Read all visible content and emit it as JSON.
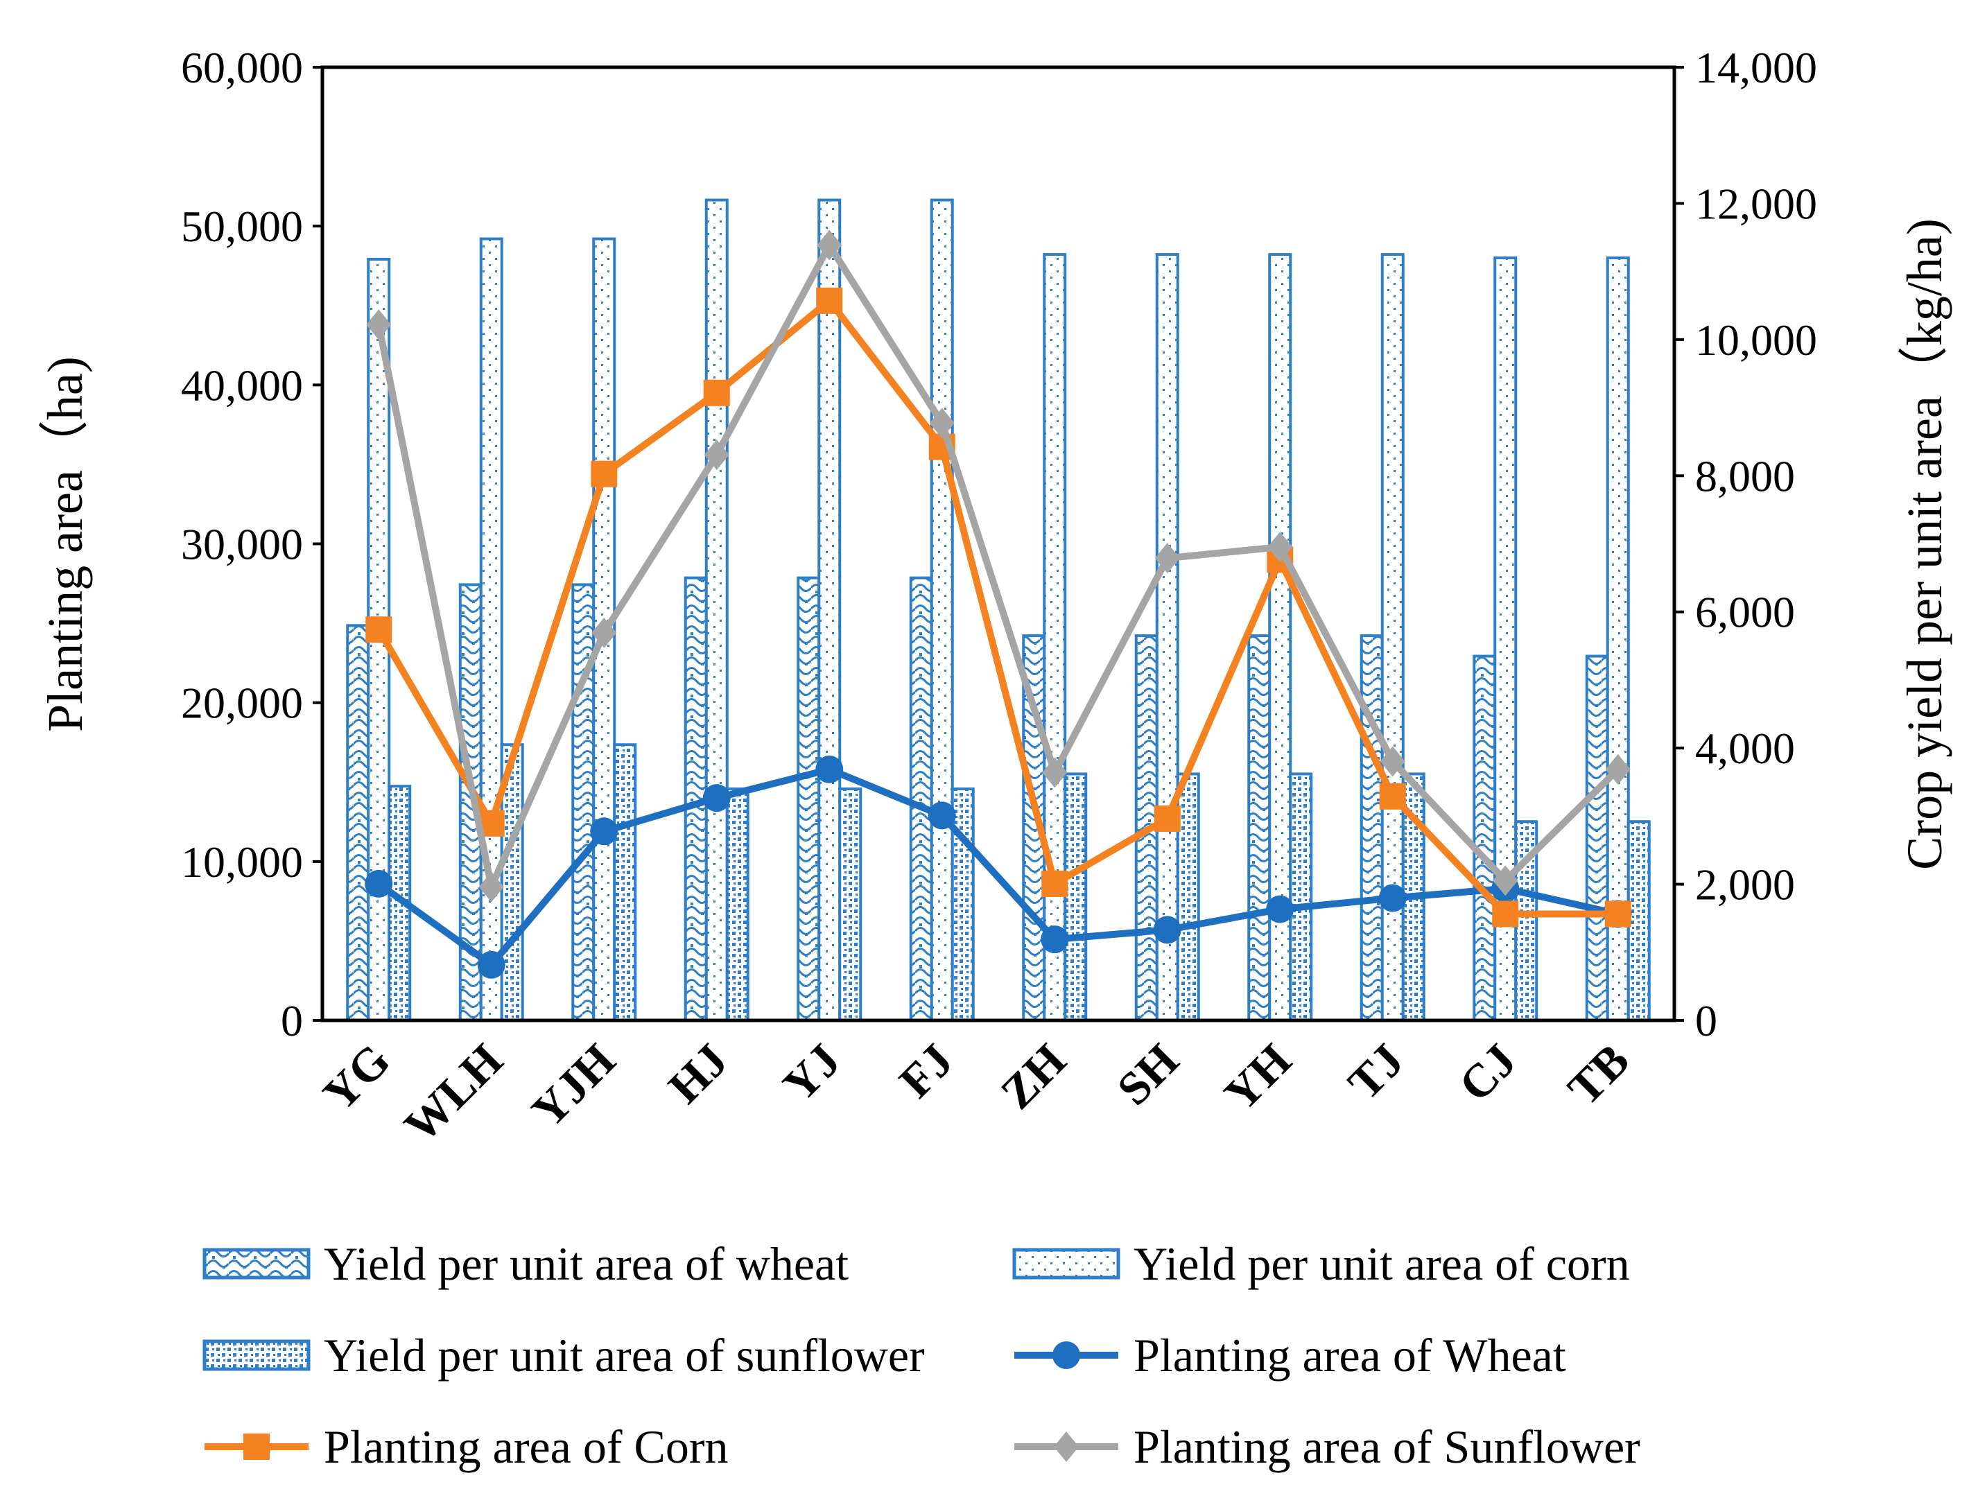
{
  "colors": {
    "bar_blue": "#2f7fc8",
    "wheat_line": "#1f6fc0",
    "corn_line": "#f58220",
    "sunflower_line": "#a5a5a5",
    "axis": "#000000"
  },
  "chart_data": {
    "type": "bar+line",
    "categories": [
      "YG",
      "WLH",
      "YJH",
      "HJ",
      "YJ",
      "FJ",
      "ZH",
      "SH",
      "YH",
      "TJ",
      "CJ",
      "TB"
    ],
    "left_axis": {
      "title": "Planting area（ha)",
      "range": [
        0,
        60000
      ],
      "ticks": [
        0,
        10000,
        20000,
        30000,
        40000,
        50000,
        60000
      ],
      "tick_labels": [
        "0",
        "10,000",
        "20,000",
        "30,000",
        "40,000",
        "50,000",
        "60,000"
      ]
    },
    "right_axis": {
      "title": "Crop yield per unit area（kg/ha)",
      "range": [
        0,
        14000
      ],
      "ticks": [
        0,
        2000,
        4000,
        6000,
        8000,
        10000,
        12000,
        14000
      ],
      "tick_labels": [
        "0",
        "2,000",
        "4,000",
        "6,000",
        "8,000",
        "10,000",
        "12,000",
        "14,000"
      ]
    },
    "bar_series": [
      {
        "name": "Yield per unit area of wheat",
        "axis": "right",
        "pattern": "wheat",
        "values": [
          5800,
          6400,
          6400,
          6500,
          6500,
          6500,
          5650,
          5650,
          5650,
          5650,
          5350,
          5350
        ]
      },
      {
        "name": "Yield per unit area of corn",
        "axis": "right",
        "pattern": "corn",
        "values": [
          11180,
          11480,
          11480,
          12050,
          12050,
          12050,
          11250,
          11250,
          11250,
          11250,
          11200,
          11200
        ]
      },
      {
        "name": "Yield per unit area of sunflower",
        "axis": "right",
        "pattern": "sunflower",
        "values": [
          3440,
          4050,
          4050,
          3400,
          3400,
          3400,
          3620,
          3620,
          3620,
          3620,
          2920,
          2920
        ]
      }
    ],
    "line_series": [
      {
        "name": "Planting area of Wheat",
        "axis": "left",
        "marker": "circle",
        "color_key": "wheat_line",
        "values": [
          8600,
          3500,
          11900,
          14000,
          15800,
          12900,
          5100,
          5700,
          7000,
          7700,
          8300,
          6700
        ]
      },
      {
        "name": "Planting area of Corn",
        "axis": "left",
        "marker": "square",
        "color_key": "corn_line",
        "values": [
          24600,
          12400,
          34400,
          39500,
          45300,
          36100,
          8600,
          12700,
          29000,
          14100,
          6700,
          6700
        ]
      },
      {
        "name": "Planting area of Sunflower",
        "axis": "left",
        "marker": "diamond",
        "color_key": "sunflower_line",
        "values": [
          43800,
          8400,
          24400,
          35600,
          48800,
          37600,
          15600,
          29100,
          29800,
          16300,
          8800,
          15800
        ]
      }
    ],
    "legend": [
      {
        "label": "Yield per unit area of wheat",
        "kind": "bar",
        "pattern": "wheat"
      },
      {
        "label": "Yield per unit area of corn",
        "kind": "bar",
        "pattern": "corn"
      },
      {
        "label": "Yield per unit area of sunflower",
        "kind": "bar",
        "pattern": "sunflower"
      },
      {
        "label": "Planting area of Wheat",
        "kind": "line",
        "marker": "circle",
        "color_key": "wheat_line"
      },
      {
        "label": "Planting area of Corn",
        "kind": "line",
        "marker": "square",
        "color_key": "corn_line"
      },
      {
        "label": "Planting area of Sunflower",
        "kind": "line",
        "marker": "diamond",
        "color_key": "sunflower_line"
      }
    ],
    "legend_position": "bottom",
    "grid": false
  }
}
